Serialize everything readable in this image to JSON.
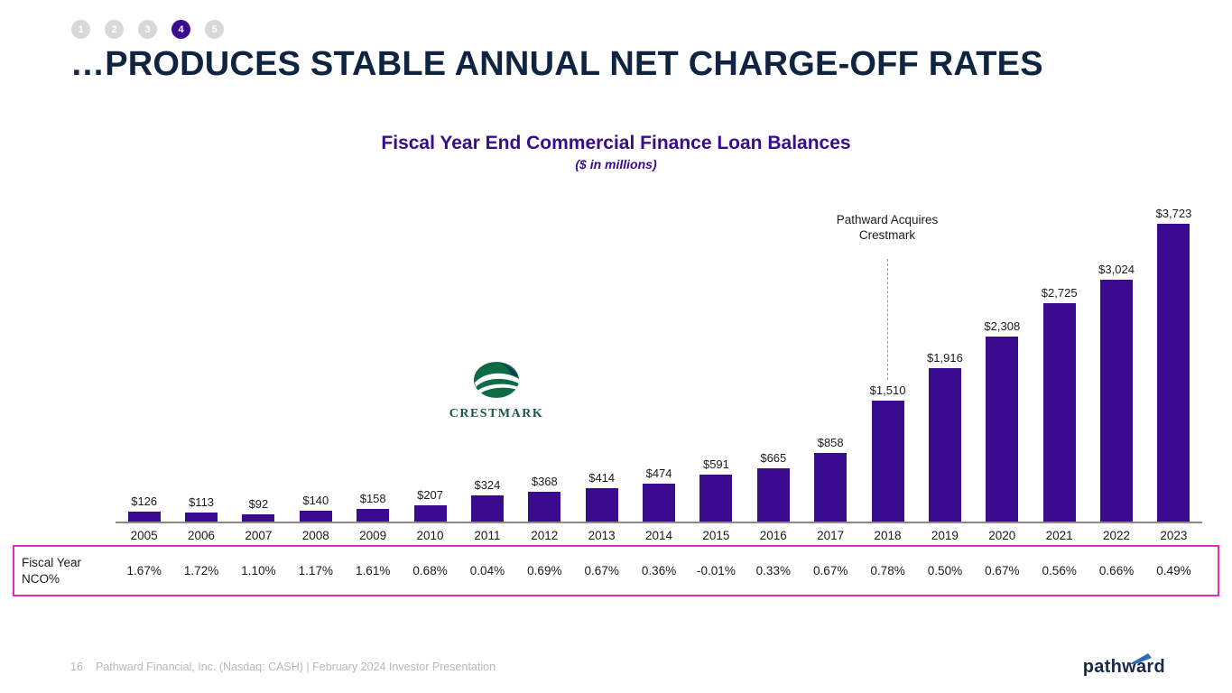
{
  "pager": {
    "items": [
      "1",
      "2",
      "3",
      "4",
      "5"
    ],
    "active_index": 3
  },
  "title": "…PRODUCES STABLE ANNUAL NET CHARGE-OFF RATES",
  "colors": {
    "bar": "#3a0a8f",
    "accent_pink": "#e32bbf",
    "title_navy": "#0e2440",
    "crestmark_green": "#14594a"
  },
  "chart_data": {
    "type": "bar",
    "title": "Fiscal Year End Commercial Finance Loan Balances",
    "subtitle": "($ in millions)",
    "categories": [
      "2005",
      "2006",
      "2007",
      "2008",
      "2009",
      "2010",
      "2011",
      "2012",
      "2013",
      "2014",
      "2015",
      "2016",
      "2017",
      "2018",
      "2019",
      "2020",
      "2021",
      "2022",
      "2023"
    ],
    "values": [
      126,
      113,
      92,
      140,
      158,
      207,
      324,
      368,
      414,
      474,
      591,
      665,
      858,
      1510,
      1916,
      2308,
      2725,
      3024,
      3723
    ],
    "labels": [
      "$126",
      "$113",
      "$92",
      "$140",
      "$158",
      "$207",
      "$324",
      "$368",
      "$414",
      "$474",
      "$591",
      "$665",
      "$858",
      "$1,510",
      "$1,916",
      "$2,308",
      "$2,725",
      "$3,024",
      "$3,723"
    ],
    "ylim": [
      0,
      3723
    ],
    "grid": false,
    "legend": false,
    "annotation": {
      "text": "Pathward Acquires Crestmark",
      "at_category": "2018"
    }
  },
  "crestmark_logo": {
    "label": "CRESTMARK"
  },
  "nco_table": {
    "row_label": "Fiscal Year NCO%",
    "values": [
      "1.67%",
      "1.72%",
      "1.10%",
      "1.17%",
      "1.61%",
      "0.68%",
      "0.04%",
      "0.69%",
      "0.67%",
      "0.36%",
      "-0.01%",
      "0.33%",
      "0.67%",
      "0.78%",
      "0.50%",
      "0.67%",
      "0.56%",
      "0.66%",
      "0.49%"
    ]
  },
  "footer": {
    "page_number": "16",
    "text": "Pathward Financial, Inc. (Nasdaq: CASH) | February 2024 Investor Presentation",
    "brand": "pathward"
  }
}
